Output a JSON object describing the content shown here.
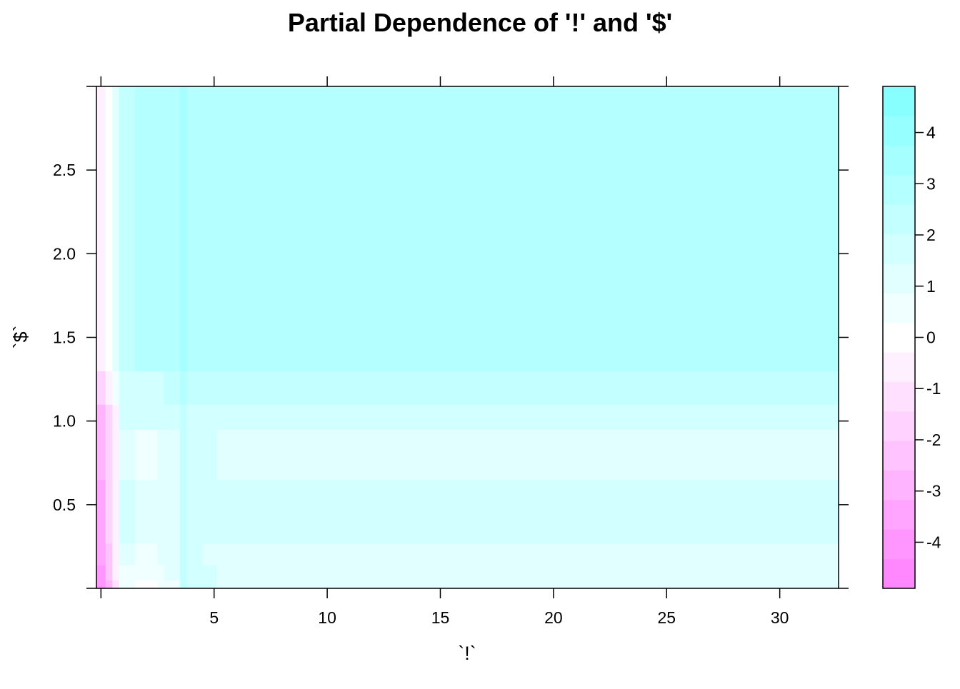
{
  "chart_data": {
    "type": "heatmap",
    "title": "Partial Dependence  of '!' and '$'",
    "xlabel": "`!`",
    "ylabel": "`$`",
    "xlim": [
      -0.2,
      32.6
    ],
    "ylim": [
      0,
      3.0
    ],
    "x_ticks": [
      5,
      10,
      15,
      20,
      25,
      30
    ],
    "x_tick_labels": [
      "5",
      "10",
      "15",
      "20",
      "25",
      "30"
    ],
    "x_top_ticks": [
      0,
      5,
      10,
      15,
      20,
      25,
      30
    ],
    "y_ticks": [
      0.5,
      1.0,
      1.5,
      2.0,
      2.5
    ],
    "y_tick_labels": [
      "0.5",
      "1.0",
      "1.5",
      "2.0",
      "2.5"
    ],
    "colorkey": {
      "range": [
        -4.9,
        4.9
      ],
      "low_color": "#ff80ff",
      "mid_color": "#ffffff",
      "high_color": "#80ffff",
      "levels": 17,
      "ticks": [
        -4,
        -3,
        -2,
        -1,
        0,
        1,
        2,
        3,
        4
      ],
      "tick_labels": [
        "-4",
        "-3",
        "-2",
        "-1",
        "0",
        "1",
        "2",
        "3",
        "4"
      ]
    },
    "x_breaks": [
      -0.2,
      0.2,
      0.5,
      0.8,
      1.5,
      2.5,
      2.8,
      3.5,
      3.8,
      4.5,
      5.1,
      32.6
    ],
    "y_breaks": [
      0,
      0.05,
      0.14,
      0.27,
      0.65,
      0.95,
      1.1,
      1.3,
      3.0
    ],
    "z": [
      [
        -4.2,
        -3.0,
        -1.0,
        0.4,
        0.0,
        0.5,
        0.8,
        2.3,
        1.6,
        1.6,
        1.2
      ],
      [
        -3.8,
        -2.5,
        -0.8,
        0.6,
        0.6,
        0.6,
        0.9,
        2.3,
        1.6,
        1.6,
        1.2
      ],
      [
        -3.4,
        -2.2,
        -0.6,
        1.4,
        0.8,
        0.9,
        1.0,
        2.3,
        1.6,
        1.4,
        1.2
      ],
      [
        -3.2,
        -2.0,
        -0.4,
        1.5,
        1.2,
        1.2,
        1.3,
        2.4,
        2.0,
        2.0,
        2.0
      ],
      [
        -3.0,
        -1.8,
        -0.3,
        1.4,
        0.6,
        1.0,
        1.1,
        2.4,
        1.8,
        1.6,
        1.4
      ],
      [
        -3.0,
        -1.8,
        -0.3,
        1.6,
        1.5,
        1.6,
        1.5,
        2.4,
        2.0,
        2.0,
        2.0
      ],
      [
        -2.0,
        -0.8,
        0.3,
        1.8,
        1.8,
        1.8,
        2.2,
        2.6,
        2.2,
        2.2,
        2.2
      ],
      [
        -0.4,
        -0.1,
        1.0,
        2.4,
        2.6,
        2.6,
        2.6,
        3.3,
        2.6,
        2.6,
        2.6
      ]
    ]
  }
}
